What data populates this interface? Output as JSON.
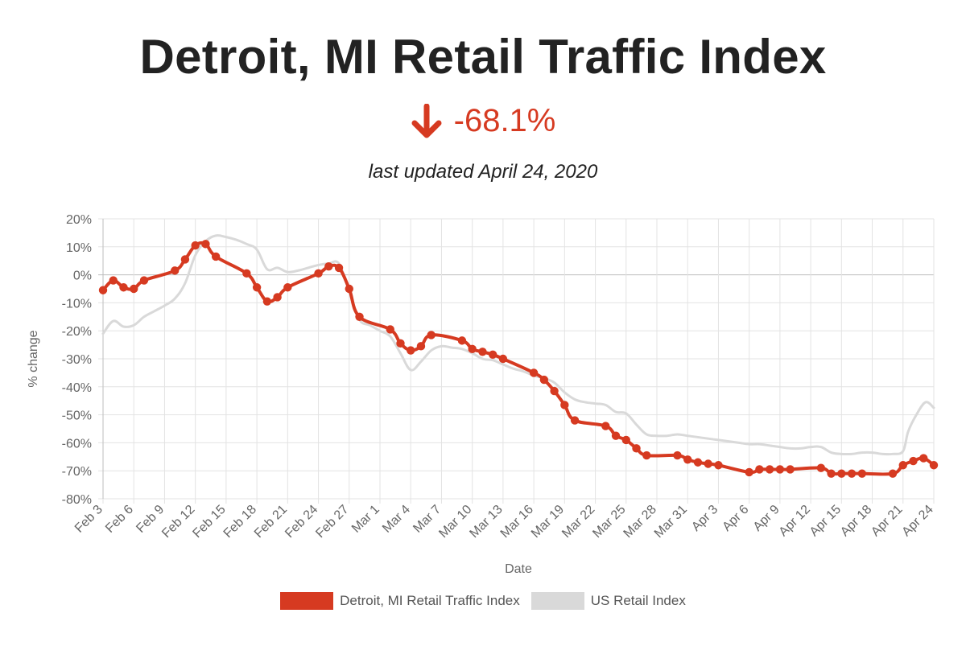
{
  "header": {
    "title": "Detroit, MI Retail Traffic Index",
    "change_value": "-68.1%",
    "change_icon": "arrow-down-icon",
    "updated": "last updated April 24, 2020"
  },
  "colors": {
    "detroit": "#d63a21",
    "us": "#d9d9d9",
    "grid": "#e3e3e3",
    "zero": "#bdbdbd",
    "axis_text": "#666666"
  },
  "chart_data": {
    "type": "line",
    "xlabel": "Date",
    "ylabel": "% change",
    "ylim": [
      -80,
      20
    ],
    "yticks": [
      "20%",
      "10%",
      "0%",
      "-10%",
      "-20%",
      "-30%",
      "-40%",
      "-50%",
      "-60%",
      "-70%",
      "-80%"
    ],
    "ytick_values": [
      20,
      10,
      0,
      -10,
      -20,
      -30,
      -40,
      -50,
      -60,
      -70,
      -80
    ],
    "x_day_range": [
      0,
      81
    ],
    "xticks": [
      {
        "day": 0,
        "label": "Feb 3"
      },
      {
        "day": 3,
        "label": "Feb 6"
      },
      {
        "day": 6,
        "label": "Feb 9"
      },
      {
        "day": 9,
        "label": "Feb 12"
      },
      {
        "day": 12,
        "label": "Feb 15"
      },
      {
        "day": 15,
        "label": "Feb 18"
      },
      {
        "day": 18,
        "label": "Feb 21"
      },
      {
        "day": 21,
        "label": "Feb 24"
      },
      {
        "day": 24,
        "label": "Feb 27"
      },
      {
        "day": 27,
        "label": "Mar 1"
      },
      {
        "day": 30,
        "label": "Mar 4"
      },
      {
        "day": 33,
        "label": "Mar 7"
      },
      {
        "day": 36,
        "label": "Mar 10"
      },
      {
        "day": 39,
        "label": "Mar 13"
      },
      {
        "day": 42,
        "label": "Mar 16"
      },
      {
        "day": 45,
        "label": "Mar 19"
      },
      {
        "day": 48,
        "label": "Mar 22"
      },
      {
        "day": 51,
        "label": "Mar 25"
      },
      {
        "day": 54,
        "label": "Mar 28"
      },
      {
        "day": 57,
        "label": "Mar 31"
      },
      {
        "day": 60,
        "label": "Apr 3"
      },
      {
        "day": 63,
        "label": "Apr 6"
      },
      {
        "day": 66,
        "label": "Apr 9"
      },
      {
        "day": 69,
        "label": "Apr 12"
      },
      {
        "day": 72,
        "label": "Apr 15"
      },
      {
        "day": 75,
        "label": "Apr 18"
      },
      {
        "day": 78,
        "label": "Apr 21"
      },
      {
        "day": 81,
        "label": "Apr 24"
      }
    ],
    "series": [
      {
        "name": "US Retail Index",
        "markers": false,
        "points": [
          [
            0,
            -21
          ],
          [
            1,
            -16.5
          ],
          [
            2,
            -18.5
          ],
          [
            3,
            -18
          ],
          [
            4,
            -15
          ],
          [
            5,
            -13
          ],
          [
            6,
            -11
          ],
          [
            7,
            -8.5
          ],
          [
            8,
            -3
          ],
          [
            9,
            7
          ],
          [
            10,
            12
          ],
          [
            11,
            14
          ],
          [
            12,
            13.5
          ],
          [
            13,
            12.5
          ],
          [
            14,
            11
          ],
          [
            15,
            9
          ],
          [
            16,
            2
          ],
          [
            17,
            2.5
          ],
          [
            18,
            1
          ],
          [
            19,
            1.5
          ],
          [
            20,
            2.5
          ],
          [
            21,
            3.5
          ],
          [
            22,
            4
          ],
          [
            23,
            4
          ],
          [
            24,
            -6
          ],
          [
            25,
            -16
          ],
          [
            26,
            -18
          ],
          [
            27,
            -20
          ],
          [
            28,
            -22
          ],
          [
            29,
            -28
          ],
          [
            30,
            -34
          ],
          [
            31,
            -31
          ],
          [
            32,
            -27
          ],
          [
            33,
            -25.5
          ],
          [
            34,
            -26
          ],
          [
            35,
            -26.5
          ],
          [
            36,
            -28
          ],
          [
            37,
            -30
          ],
          [
            38,
            -30.5
          ],
          [
            39,
            -32
          ],
          [
            40,
            -33.5
          ],
          [
            41,
            -34.5
          ],
          [
            42,
            -36
          ],
          [
            43,
            -37
          ],
          [
            44,
            -38.5
          ],
          [
            45,
            -42
          ],
          [
            46,
            -44.5
          ],
          [
            47,
            -45.5
          ],
          [
            48,
            -46
          ],
          [
            49,
            -46.5
          ],
          [
            50,
            -49
          ],
          [
            51,
            -49.5
          ],
          [
            52,
            -53.5
          ],
          [
            53,
            -57
          ],
          [
            54,
            -57.5
          ],
          [
            55,
            -57.5
          ],
          [
            56,
            -57
          ],
          [
            57,
            -57.5
          ],
          [
            58,
            -58
          ],
          [
            59,
            -58.5
          ],
          [
            60,
            -59
          ],
          [
            61,
            -59.5
          ],
          [
            62,
            -60
          ],
          [
            63,
            -60.5
          ],
          [
            64,
            -60.5
          ],
          [
            65,
            -61
          ],
          [
            66,
            -61.5
          ],
          [
            67,
            -62
          ],
          [
            68,
            -62
          ],
          [
            69,
            -61.5
          ],
          [
            70,
            -61.5
          ],
          [
            71,
            -63.5
          ],
          [
            72,
            -64
          ],
          [
            73,
            -64
          ],
          [
            74,
            -63.5
          ],
          [
            75,
            -63.5
          ],
          [
            76,
            -64
          ],
          [
            77,
            -64
          ],
          [
            78,
            -63
          ],
          [
            78.5,
            -56
          ],
          [
            79.3,
            -50
          ],
          [
            80.2,
            -45.5
          ],
          [
            81,
            -47.5
          ]
        ]
      },
      {
        "name": "Detroit, MI Retail Traffic Index",
        "markers": true,
        "points": [
          [
            0,
            -5.5
          ],
          [
            1,
            -2
          ],
          [
            2,
            -4.5
          ],
          [
            3,
            -5
          ],
          [
            4,
            -2
          ],
          [
            7,
            1.5
          ],
          [
            8,
            5.5
          ],
          [
            9,
            10.5
          ],
          [
            10,
            11
          ],
          [
            11,
            6.5
          ],
          [
            14,
            0.5
          ],
          [
            15,
            -4.5
          ],
          [
            16,
            -9.5
          ],
          [
            17,
            -8
          ],
          [
            18,
            -4.5
          ],
          [
            21,
            0.5
          ],
          [
            22,
            3
          ],
          [
            23,
            2.5
          ],
          [
            24,
            -5
          ],
          [
            25,
            -15
          ],
          [
            28,
            -19.5
          ],
          [
            29,
            -24.5
          ],
          [
            30,
            -27
          ],
          [
            31,
            -25.5
          ],
          [
            32,
            -21.5
          ],
          [
            35,
            -23.5
          ],
          [
            36,
            -26.5
          ],
          [
            37,
            -27.5
          ],
          [
            38,
            -28.5
          ],
          [
            39,
            -30
          ],
          [
            42,
            -35
          ],
          [
            43,
            -37.5
          ],
          [
            44,
            -41.5
          ],
          [
            45,
            -46.5
          ],
          [
            46,
            -52
          ],
          [
            49,
            -54
          ],
          [
            50,
            -57.5
          ],
          [
            51,
            -59
          ],
          [
            52,
            -62
          ],
          [
            53,
            -64.5
          ],
          [
            56,
            -64.5
          ],
          [
            57,
            -66
          ],
          [
            58,
            -67
          ],
          [
            59,
            -67.5
          ],
          [
            60,
            -68
          ],
          [
            63,
            -70.5
          ],
          [
            64,
            -69.5
          ],
          [
            65,
            -69.5
          ],
          [
            66,
            -69.5
          ],
          [
            67,
            -69.5
          ],
          [
            70,
            -69
          ],
          [
            71,
            -71
          ],
          [
            72,
            -71
          ],
          [
            73,
            -71
          ],
          [
            74,
            -71
          ],
          [
            77,
            -71
          ],
          [
            78,
            -68
          ],
          [
            79,
            -66.5
          ],
          [
            80,
            -65.5
          ],
          [
            81,
            -68
          ]
        ]
      }
    ],
    "legend": [
      "Detroit, MI Retail Traffic Index",
      "US Retail Index"
    ],
    "legend_position": "bottom",
    "grid": true
  }
}
